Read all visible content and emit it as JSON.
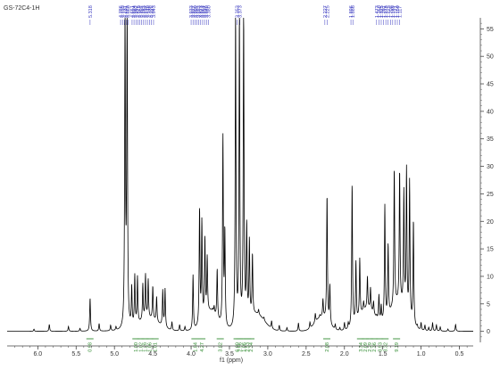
{
  "chart_data": {
    "type": "line",
    "title": "GS-72C4-1H",
    "xlabel": "f1 (ppm)",
    "ylabel": "",
    "xlim": [
      6.4,
      0.32
    ],
    "ylim": [
      -2,
      57
    ],
    "x_ticks": [
      "6.0",
      "5.5",
      "5.0",
      "4.5",
      "4.0",
      "3.5",
      "3.0",
      "2.5",
      "2.0",
      "1.5",
      "1.0",
      "0.5"
    ],
    "y_ticks": [
      "0",
      "5",
      "10",
      "15",
      "20",
      "25",
      "30",
      "35",
      "40",
      "45",
      "50",
      "55"
    ],
    "peaks": [
      {
        "x": 5.318,
        "y": 6.0
      },
      {
        "x": 4.862,
        "y": 57.0
      },
      {
        "x": 4.835,
        "y": 57.0
      },
      {
        "x": 4.775,
        "y": 7.0
      },
      {
        "x": 4.735,
        "y": 9.0
      },
      {
        "x": 4.7,
        "y": 8.5
      },
      {
        "x": 4.63,
        "y": 6.5
      },
      {
        "x": 4.595,
        "y": 8.0
      },
      {
        "x": 4.56,
        "y": 7.0
      },
      {
        "x": 4.5,
        "y": 6.0
      },
      {
        "x": 4.45,
        "y": 4.5
      },
      {
        "x": 4.37,
        "y": 6.5
      },
      {
        "x": 4.34,
        "y": 7.0
      },
      {
        "x": 3.975,
        "y": 10.0
      },
      {
        "x": 3.89,
        "y": 21.0
      },
      {
        "x": 3.86,
        "y": 18.0
      },
      {
        "x": 3.82,
        "y": 14.0
      },
      {
        "x": 3.79,
        "y": 10.0
      },
      {
        "x": 3.66,
        "y": 9.0
      },
      {
        "x": 3.585,
        "y": 34.5
      },
      {
        "x": 3.56,
        "y": 17.0
      },
      {
        "x": 3.42,
        "y": 57.0
      },
      {
        "x": 3.37,
        "y": 57.0
      },
      {
        "x": 3.315,
        "y": 57.0
      },
      {
        "x": 3.275,
        "y": 17.0
      },
      {
        "x": 3.24,
        "y": 14.0
      },
      {
        "x": 3.2,
        "y": 11.0
      },
      {
        "x": 2.227,
        "y": 23.0
      },
      {
        "x": 2.19,
        "y": 7.0
      },
      {
        "x": 1.9,
        "y": 26.0
      },
      {
        "x": 1.85,
        "y": 11.0
      },
      {
        "x": 1.8,
        "y": 10.5
      },
      {
        "x": 1.473,
        "y": 21.0
      },
      {
        "x": 1.43,
        "y": 13.0
      },
      {
        "x": 1.35,
        "y": 25.0
      },
      {
        "x": 1.28,
        "y": 24.0
      },
      {
        "x": 1.225,
        "y": 21.0
      },
      {
        "x": 1.19,
        "y": 26.0
      },
      {
        "x": 1.15,
        "y": 25.0
      },
      {
        "x": 1.1,
        "y": 19.0
      }
    ],
    "peak_labels": [
      {
        "text": "5.318",
        "x": 5.318
      },
      {
        "text": "4.786",
        "x": 4.92
      },
      {
        "text": "4.755",
        "x": 4.895
      },
      {
        "text": "4.731",
        "x": 4.87
      },
      {
        "text": "4.691",
        "x": 4.845
      },
      {
        "text": "4.660",
        "x": 4.82
      },
      {
        "text": "4.651",
        "x": 4.77
      },
      {
        "text": "4.624",
        "x": 4.745
      },
      {
        "text": "4.592",
        "x": 4.72
      },
      {
        "text": "4.575",
        "x": 4.695
      },
      {
        "text": "4.552",
        "x": 4.67
      },
      {
        "text": "4.467",
        "x": 4.645
      },
      {
        "text": "4.463",
        "x": 4.62
      },
      {
        "text": "4.437",
        "x": 4.595
      },
      {
        "text": "4.410",
        "x": 4.57
      },
      {
        "text": "4.339",
        "x": 4.545
      },
      {
        "text": "4.328",
        "x": 4.52
      },
      {
        "text": "3.943",
        "x": 4.49
      },
      {
        "text": "3.933",
        "x": 4.0
      },
      {
        "text": "3.927",
        "x": 3.975
      },
      {
        "text": "3.900",
        "x": 3.95
      },
      {
        "text": "3.897",
        "x": 3.925
      },
      {
        "text": "3.883",
        "x": 3.9
      },
      {
        "text": "3.873",
        "x": 3.875
      },
      {
        "text": "3.861",
        "x": 3.85
      },
      {
        "text": "3.857",
        "x": 3.825
      },
      {
        "text": "3.840",
        "x": 3.8
      },
      {
        "text": "3.380",
        "x": 3.775
      },
      {
        "text": "3.353",
        "x": 3.4
      },
      {
        "text": "3.373",
        "x": 3.365
      },
      {
        "text": "2.227",
        "x": 2.255
      },
      {
        "text": "2.225",
        "x": 2.225
      },
      {
        "text": "1.896",
        "x": 1.915
      },
      {
        "text": "1.886",
        "x": 1.89
      },
      {
        "text": "1.473",
        "x": 1.58
      },
      {
        "text": "1.350",
        "x": 1.55
      },
      {
        "text": "1.325",
        "x": 1.52
      },
      {
        "text": "1.291",
        "x": 1.49
      },
      {
        "text": "1.275",
        "x": 1.46
      },
      {
        "text": "1.225",
        "x": 1.43
      },
      {
        "text": "1.208",
        "x": 1.4
      },
      {
        "text": "1.189",
        "x": 1.37
      },
      {
        "text": "1.171",
        "x": 1.34
      },
      {
        "text": "1.150",
        "x": 1.31
      },
      {
        "text": "1.117",
        "x": 1.28
      }
    ],
    "integrals": [
      {
        "text": "0.98",
        "x": 5.32
      },
      {
        "text": "1.00",
        "x": 4.72
      },
      {
        "text": "1.02",
        "x": 4.66
      },
      {
        "text": "1.29",
        "x": 4.6
      },
      {
        "text": "1.06",
        "x": 4.54
      },
      {
        "text": "1.01",
        "x": 4.47
      },
      {
        "text": "1.84",
        "x": 3.95
      },
      {
        "text": "4.27",
        "x": 3.86
      },
      {
        "text": "3.82",
        "x": 3.62
      },
      {
        "text": "6.00",
        "x": 3.4
      },
      {
        "text": "2.96",
        "x": 3.365
      },
      {
        "text": "1.06",
        "x": 3.315
      },
      {
        "text": "2.53",
        "x": 3.265
      },
      {
        "text": "2.34",
        "x": 3.22
      },
      {
        "text": "2.08",
        "x": 2.23
      },
      {
        "text": "3.34",
        "x": 1.79
      },
      {
        "text": "2.09",
        "x": 1.73
      },
      {
        "text": "2.29",
        "x": 1.67
      },
      {
        "text": "2.36",
        "x": 1.61
      },
      {
        "text": "3.93",
        "x": 1.54
      },
      {
        "text": "3.32",
        "x": 1.47
      },
      {
        "text": "9.19",
        "x": 1.32
      }
    ],
    "colors": {
      "spectrum": "#000000",
      "peak_label": "#3a3ac0",
      "integral": "#2e8b2e",
      "axis": "#444444"
    },
    "grid": false
  }
}
